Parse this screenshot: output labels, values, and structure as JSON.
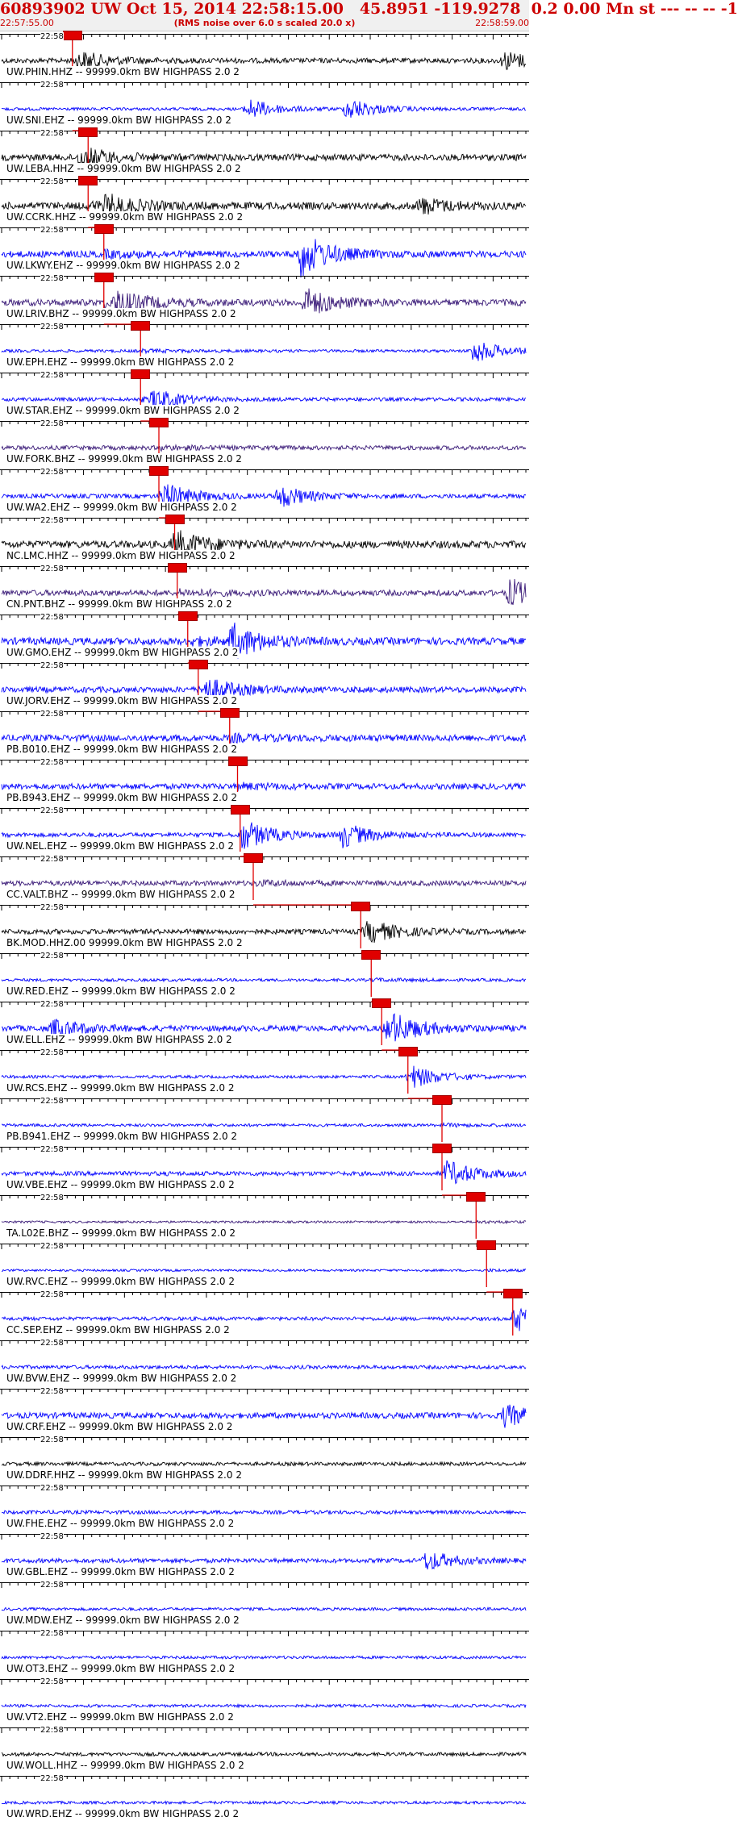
{
  "header": {
    "title": "60893902 UW Oct 15, 2014 22:58:15.00   45.8951 -119.9278  0.2 0.00 Mn st --- -- -- -1",
    "start_time": "22:57:55.00",
    "rms_note": "(RMS noise over 6.0 s scaled 20.0 x)",
    "end_time": "22:58:59.00"
  },
  "minute_label": "22:58",
  "colors": {
    "title_red": "#cc0000",
    "pick_red": "#e00000",
    "trace_blue": "#0000ff",
    "trace_purple": "#3a1a78",
    "trace_black": "#000000"
  },
  "traces": [
    {
      "label": "UW.PHIN.HHZ -- 99999.0km BW  HIGHPASS  2.0  2",
      "color": "black",
      "pick": 0.135,
      "ampl": 0.7,
      "bursts": [
        {
          "at": 0.15,
          "amp": 1.0
        },
        {
          "at": 0.96,
          "amp": 1.2
        }
      ]
    },
    {
      "label": "UW.SNI.EHZ -- 99999.0km BW  HIGHPASS  2.0  2",
      "color": "blue",
      "pick": 0.0,
      "ampl": 0.4,
      "bursts": [
        {
          "at": 0.47,
          "amp": 1.4
        },
        {
          "at": 0.66,
          "amp": 1.5
        }
      ]
    },
    {
      "label": "UW.LEBA.HHZ -- 99999.0km BW  HIGHPASS  2.0  2",
      "color": "black",
      "pick": 0.165,
      "ampl": 0.9,
      "bursts": [
        {
          "at": 0.15,
          "amp": 1.0
        }
      ]
    },
    {
      "label": "UW.CCRK.HHZ -- 99999.0km BW  HIGHPASS  2.0  2",
      "color": "black",
      "pick": 0.165,
      "ampl": 1.0,
      "bursts": [
        {
          "at": 0.2,
          "amp": 1.2
        },
        {
          "at": 0.8,
          "amp": 1.0
        }
      ]
    },
    {
      "label": "UW.LKWY.EHZ -- 99999.0km BW  HIGHPASS  2.0  2",
      "color": "blue",
      "pick": 0.195,
      "ampl": 0.9,
      "bursts": [
        {
          "at": 0.57,
          "amp": 3.0
        }
      ]
    },
    {
      "label": "UW.LRIV.BHZ -- 99999.0km BW  HIGHPASS  2.0  2",
      "color": "purple",
      "pick": 0.195,
      "ampl": 0.9,
      "bursts": [
        {
          "at": 0.22,
          "amp": 1.5
        },
        {
          "at": 0.58,
          "amp": 1.8
        }
      ]
    },
    {
      "label": "UW.EPH.EHZ -- 99999.0km BW  HIGHPASS  2.0  2",
      "color": "blue",
      "pick": 0.265,
      "ampl": 0.4,
      "bursts": [
        {
          "at": 0.9,
          "amp": 1.6
        }
      ]
    },
    {
      "label": "UW.STAR.EHZ -- 99999.0km BW  HIGHPASS  2.0  2",
      "color": "blue",
      "pick": 0.265,
      "ampl": 0.5,
      "bursts": [
        {
          "at": 0.29,
          "amp": 1.3
        }
      ]
    },
    {
      "label": "UW.FORK.BHZ -- 99999.0km BW  HIGHPASS  2.0  2",
      "color": "purple",
      "pick": 0.3,
      "ampl": 0.6,
      "bursts": []
    },
    {
      "label": "UW.WA2.EHZ -- 99999.0km BW  HIGHPASS  2.0  2",
      "color": "blue",
      "pick": 0.3,
      "ampl": 0.6,
      "bursts": [
        {
          "at": 0.31,
          "amp": 1.5
        },
        {
          "at": 0.53,
          "amp": 1.5
        }
      ]
    },
    {
      "label": "NC.LMC.HHZ -- 99999.0km BW  HIGHPASS  2.0  2",
      "color": "black",
      "pick": 0.33,
      "ampl": 1.0,
      "bursts": [
        {
          "at": 0.33,
          "amp": 1.5
        }
      ]
    },
    {
      "label": "CN.PNT.BHZ -- 99999.0km BW  HIGHPASS  2.0  2",
      "color": "purple",
      "pick": 0.335,
      "ampl": 0.8,
      "bursts": [
        {
          "at": 0.97,
          "amp": 1.8
        }
      ]
    },
    {
      "label": "UW.GMO.EHZ -- 99999.0km BW  HIGHPASS  2.0  2",
      "color": "blue",
      "pick": 0.355,
      "ampl": 1.0,
      "bursts": [
        {
          "at": 0.44,
          "amp": 2.2
        }
      ]
    },
    {
      "label": "UW.JORV.EHZ -- 99999.0km BW  HIGHPASS  2.0  2",
      "color": "blue",
      "pick": 0.375,
      "ampl": 0.8,
      "bursts": [
        {
          "at": 0.39,
          "amp": 1.3
        }
      ]
    },
    {
      "label": "PB.B010.EHZ -- 99999.0km BW  HIGHPASS  2.0  2",
      "color": "blue",
      "pick": 0.435,
      "ampl": 0.9,
      "bursts": []
    },
    {
      "label": "PB.B943.EHZ -- 99999.0km BW  HIGHPASS  2.0  2",
      "color": "blue",
      "pick": 0.45,
      "ampl": 0.8,
      "bursts": []
    },
    {
      "label": "UW.NEL.EHZ -- 99999.0km BW  HIGHPASS  2.0  2",
      "color": "blue",
      "pick": 0.455,
      "ampl": 0.6,
      "bursts": [
        {
          "at": 0.46,
          "amp": 1.8
        },
        {
          "at": 0.65,
          "amp": 1.6
        }
      ]
    },
    {
      "label": "CC.VALT.BHZ -- 99999.0km BW  HIGHPASS  2.0  2",
      "color": "purple",
      "pick": 0.48,
      "ampl": 0.7,
      "bursts": []
    },
    {
      "label": "BK.MOD.HHZ.00 99999.0km BW  HIGHPASS  2.0  2",
      "color": "black",
      "pick": 0.685,
      "ampl": 0.7,
      "bursts": [
        {
          "at": 0.7,
          "amp": 1.3
        }
      ]
    },
    {
      "label": "UW.RED.EHZ -- 99999.0km BW  HIGHPASS  2.0  2",
      "color": "blue",
      "pick": 0.705,
      "ampl": 0.4,
      "bursts": []
    },
    {
      "label": "UW.ELL.EHZ -- 99999.0km BW  HIGHPASS  2.0  2",
      "color": "blue",
      "pick": 0.725,
      "ampl": 0.8,
      "bursts": [
        {
          "at": 0.1,
          "amp": 1.2
        },
        {
          "at": 0.74,
          "amp": 2.0
        }
      ]
    },
    {
      "label": "UW.RCS.EHZ -- 99999.0km BW  HIGHPASS  2.0  2",
      "color": "blue",
      "pick": 0.775,
      "ampl": 0.4,
      "bursts": [
        {
          "at": 0.78,
          "amp": 1.5
        }
      ]
    },
    {
      "label": "PB.B941.EHZ -- 99999.0km BW  HIGHPASS  2.0  2",
      "color": "blue",
      "pick": 0.84,
      "ampl": 0.4,
      "bursts": []
    },
    {
      "label": "UW.VBE.EHZ -- 99999.0km BW  HIGHPASS  2.0  2",
      "color": "blue",
      "pick": 0.84,
      "ampl": 0.6,
      "bursts": [
        {
          "at": 0.85,
          "amp": 1.5
        }
      ]
    },
    {
      "label": "TA.L02E.BHZ -- 99999.0km BW  HIGHPASS  2.0  2",
      "color": "purple",
      "pick": 0.905,
      "ampl": 0.3,
      "bursts": []
    },
    {
      "label": "UW.RVC.EHZ -- 99999.0km BW  HIGHPASS  2.0  2",
      "color": "blue",
      "pick": 0.925,
      "ampl": 0.3,
      "bursts": []
    },
    {
      "label": "CC.SEP.EHZ -- 99999.0km BW  HIGHPASS  2.0  2",
      "color": "blue",
      "pick": 0.975,
      "ampl": 0.5,
      "bursts": [
        {
          "at": 0.98,
          "amp": 1.6
        }
      ]
    },
    {
      "label": "UW.BVW.EHZ -- 99999.0km BW  HIGHPASS  2.0  2",
      "color": "blue",
      "pick": 0.0,
      "ampl": 0.5,
      "bursts": []
    },
    {
      "label": "UW.CRF.EHZ -- 99999.0km BW  HIGHPASS  2.0  2",
      "color": "blue",
      "pick": 0.0,
      "ampl": 0.8,
      "bursts": [
        {
          "at": 0.96,
          "amp": 1.4
        }
      ]
    },
    {
      "label": "UW.DDRF.HHZ -- 99999.0km BW  HIGHPASS  2.0  2",
      "color": "black",
      "pick": 0.0,
      "ampl": 0.5,
      "bursts": []
    },
    {
      "label": "UW.FHE.EHZ -- 99999.0km BW  HIGHPASS  2.0  2",
      "color": "blue",
      "pick": 0.0,
      "ampl": 0.5,
      "bursts": []
    },
    {
      "label": "UW.GBL.EHZ -- 99999.0km BW  HIGHPASS  2.0  2",
      "color": "blue",
      "pick": 0.0,
      "ampl": 0.6,
      "bursts": [
        {
          "at": 0.81,
          "amp": 1.3
        }
      ]
    },
    {
      "label": "UW.MDW.EHZ -- 99999.0km BW  HIGHPASS  2.0  2",
      "color": "blue",
      "pick": 0.0,
      "ampl": 0.4,
      "bursts": []
    },
    {
      "label": "UW.OT3.EHZ -- 99999.0km BW  HIGHPASS  2.0  2",
      "color": "blue",
      "pick": 0.0,
      "ampl": 0.4,
      "bursts": []
    },
    {
      "label": "UW.VT2.EHZ -- 99999.0km BW  HIGHPASS  2.0  2",
      "color": "blue",
      "pick": 0.0,
      "ampl": 0.4,
      "bursts": []
    },
    {
      "label": "UW.WOLL.HHZ -- 99999.0km BW  HIGHPASS  2.0  2",
      "color": "black",
      "pick": 0.0,
      "ampl": 0.5,
      "bursts": []
    },
    {
      "label": "UW.WRD.EHZ -- 99999.0km BW  HIGHPASS  2.0  2",
      "color": "blue",
      "pick": 0.0,
      "ampl": 0.4,
      "bursts": []
    }
  ]
}
